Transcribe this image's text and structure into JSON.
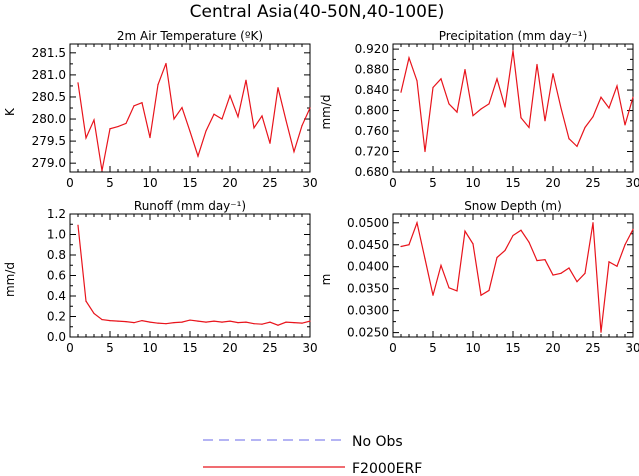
{
  "title": "Central Asia(40-50N,40-100E)",
  "colors": {
    "series": "#e8141c",
    "no_obs": "#8888ee",
    "axis": "#000000"
  },
  "legend": {
    "no_obs_label": "No Obs",
    "model_label": "F2000ERF"
  },
  "chart_data": [
    {
      "type": "line",
      "title": "2m Air Temperature (ºK)",
      "ylabel": "K",
      "xlabel": "",
      "xlim": [
        0,
        30
      ],
      "ylim": [
        278.8,
        281.7
      ],
      "xticks": [
        0,
        5,
        10,
        15,
        20,
        25,
        30
      ],
      "yticks": [
        279.0,
        279.5,
        280.0,
        280.5,
        281.0,
        281.5
      ],
      "ytick_labels": [
        "279.0",
        "279.5",
        "280.0",
        "280.5",
        "281.0",
        "281.5"
      ],
      "series": [
        {
          "name": "F2000ERF",
          "x": [
            1,
            2,
            3,
            4,
            5,
            6,
            7,
            8,
            9,
            10,
            11,
            12,
            13,
            14,
            15,
            16,
            17,
            18,
            19,
            20,
            21,
            22,
            23,
            24,
            25,
            26,
            27,
            28,
            29,
            30
          ],
          "values": [
            280.82,
            279.57,
            279.98,
            278.83,
            279.78,
            279.83,
            279.9,
            280.3,
            280.37,
            279.58,
            280.78,
            281.26,
            280.0,
            280.26,
            279.72,
            279.16,
            279.73,
            280.11,
            280.0,
            280.53,
            280.05,
            280.88,
            279.8,
            280.07,
            279.45,
            280.71,
            279.97,
            279.26,
            279.85,
            280.25
          ]
        }
      ]
    },
    {
      "type": "line",
      "title": "Precipitation (mm day⁻¹)",
      "ylabel": "mm/d",
      "xlabel": "",
      "xlim": [
        0,
        30
      ],
      "ylim": [
        0.68,
        0.93
      ],
      "xticks": [
        0,
        5,
        10,
        15,
        20,
        25,
        30
      ],
      "yticks": [
        0.68,
        0.72,
        0.76,
        0.8,
        0.84,
        0.88,
        0.92
      ],
      "ytick_labels": [
        "0.680",
        "0.720",
        "0.760",
        "0.800",
        "0.840",
        "0.880",
        "0.920"
      ],
      "series": [
        {
          "name": "F2000ERF",
          "x": [
            1,
            2,
            3,
            4,
            5,
            6,
            7,
            8,
            9,
            10,
            11,
            12,
            13,
            14,
            15,
            16,
            17,
            18,
            19,
            20,
            21,
            22,
            23,
            24,
            25,
            26,
            27,
            28,
            29,
            30
          ],
          "values": [
            0.836,
            0.903,
            0.858,
            0.72,
            0.845,
            0.862,
            0.813,
            0.797,
            0.88,
            0.79,
            0.803,
            0.813,
            0.862,
            0.807,
            0.917,
            0.786,
            0.767,
            0.89,
            0.78,
            0.872,
            0.805,
            0.745,
            0.73,
            0.767,
            0.788,
            0.826,
            0.805,
            0.848,
            0.772,
            0.826
          ]
        }
      ]
    },
    {
      "type": "line",
      "title": "Runoff (mm day⁻¹)",
      "ylabel": "mm/d",
      "xlabel": "",
      "xlim": [
        0,
        30
      ],
      "ylim": [
        0.0,
        1.2
      ],
      "xticks": [
        0,
        5,
        10,
        15,
        20,
        25,
        30
      ],
      "yticks": [
        0.0,
        0.2,
        0.4,
        0.6,
        0.8,
        1.0,
        1.2
      ],
      "ytick_labels": [
        "0.0",
        "0.2",
        "0.4",
        "0.6",
        "0.8",
        "1.0",
        "1.2"
      ],
      "series": [
        {
          "name": "F2000ERF",
          "x": [
            1,
            2,
            3,
            4,
            5,
            6,
            7,
            8,
            9,
            10,
            11,
            12,
            13,
            14,
            15,
            16,
            17,
            18,
            19,
            20,
            21,
            22,
            23,
            24,
            25,
            26,
            27,
            28,
            29,
            30
          ],
          "values": [
            1.09,
            0.35,
            0.23,
            0.17,
            0.16,
            0.155,
            0.15,
            0.14,
            0.16,
            0.145,
            0.135,
            0.13,
            0.14,
            0.145,
            0.165,
            0.155,
            0.145,
            0.155,
            0.145,
            0.155,
            0.14,
            0.145,
            0.13,
            0.125,
            0.145,
            0.115,
            0.145,
            0.14,
            0.135,
            0.155
          ]
        }
      ]
    },
    {
      "type": "line",
      "title": "Snow Depth (m)",
      "ylabel": "m",
      "xlabel": "",
      "xlim": [
        0,
        30
      ],
      "ylim": [
        0.024,
        0.052
      ],
      "xticks": [
        0,
        5,
        10,
        15,
        20,
        25,
        30
      ],
      "yticks": [
        0.025,
        0.03,
        0.035,
        0.04,
        0.045,
        0.05
      ],
      "ytick_labels": [
        "0.0250",
        "0.0300",
        "0.0350",
        "0.0400",
        "0.0450",
        "0.0500"
      ],
      "series": [
        {
          "name": "F2000ERF",
          "x": [
            1,
            2,
            3,
            4,
            5,
            6,
            7,
            8,
            9,
            10,
            11,
            12,
            13,
            14,
            15,
            16,
            17,
            18,
            19,
            20,
            21,
            22,
            23,
            24,
            25,
            26,
            27,
            28,
            29,
            30
          ],
          "values": [
            0.0446,
            0.045,
            0.05,
            0.0418,
            0.0335,
            0.0403,
            0.0352,
            0.0345,
            0.0481,
            0.0452,
            0.0335,
            0.0346,
            0.0421,
            0.0437,
            0.0471,
            0.0483,
            0.0456,
            0.0414,
            0.0416,
            0.0381,
            0.0385,
            0.0397,
            0.0366,
            0.0385,
            0.05,
            0.0251,
            0.0411,
            0.0401,
            0.045,
            0.0485
          ]
        }
      ]
    }
  ]
}
